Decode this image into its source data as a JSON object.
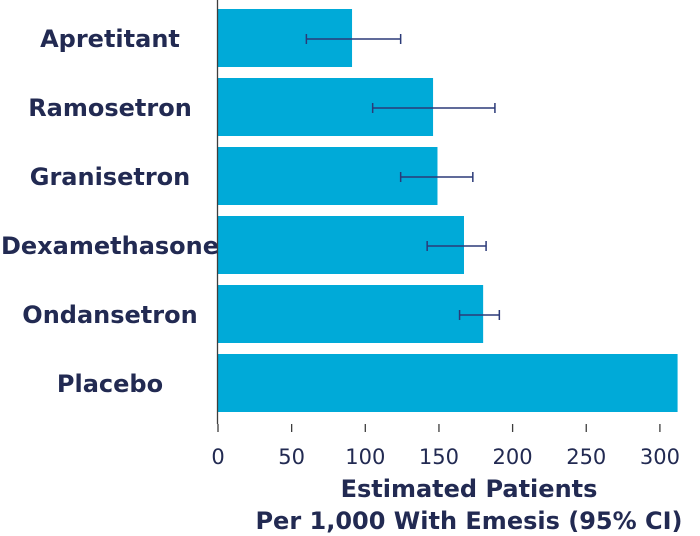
{
  "chart_data": {
    "type": "bar",
    "orientation": "horizontal",
    "categories": [
      "Apretitant",
      "Ramosetron",
      "Granisetron",
      "Dexamethasone",
      "Ondansetron",
      "Placebo"
    ],
    "values": [
      91,
      146,
      149,
      167,
      180,
      312
    ],
    "ci_low": [
      60,
      105,
      124,
      142,
      164,
      null
    ],
    "ci_high": [
      124,
      188,
      173,
      182,
      191,
      null
    ],
    "xticks": [
      0,
      50,
      100,
      150,
      200,
      250,
      300
    ],
    "xlim": [
      0,
      312
    ],
    "xlabel_line1": "Estimated Patients",
    "xlabel_line2": "Per 1,000 With Emesis (95% CI)",
    "bar_color": "#00aad8",
    "error_color": "#2b3a78",
    "text_color": "#222a52",
    "grid": false
  }
}
